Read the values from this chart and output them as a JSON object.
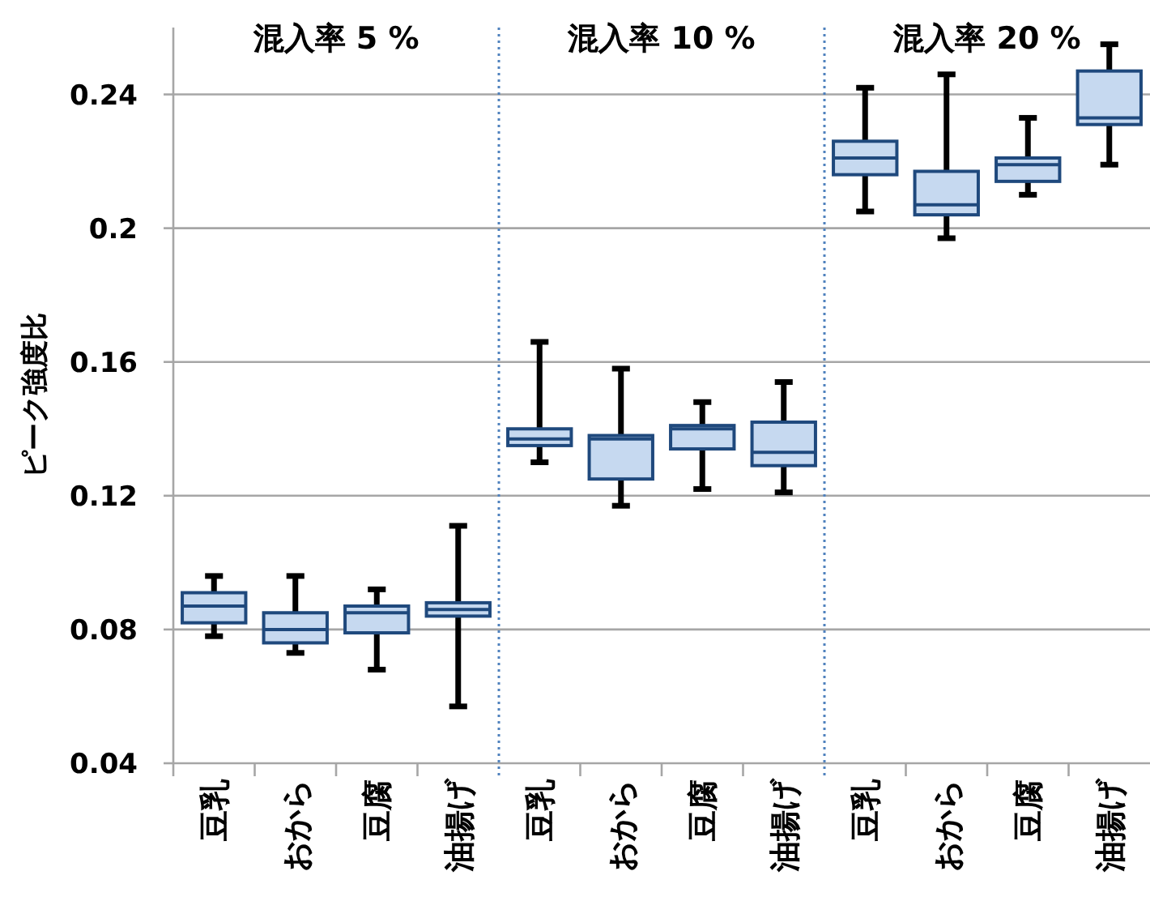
{
  "chart_data": [
    {
      "type": "box",
      "title": "混入率 5 %",
      "ylabel": "ピーク強度比",
      "categories": [
        "豆乳",
        "おから",
        "豆腐",
        "油揚げ"
      ],
      "ylim": [
        0.04,
        0.26
      ],
      "yticks": [
        0.04,
        0.08,
        0.12,
        0.16,
        0.2,
        0.24
      ],
      "grid": "y",
      "series": [
        {
          "color": "#c6d9f0",
          "boxes": [
            {
              "low": 0.078,
              "q1": 0.082,
              "median": 0.087,
              "q3": 0.091,
              "high": 0.096
            },
            {
              "low": 0.073,
              "q1": 0.076,
              "median": 0.08,
              "q3": 0.085,
              "high": 0.096
            },
            {
              "low": 0.068,
              "q1": 0.079,
              "median": 0.085,
              "q3": 0.087,
              "high": 0.092
            },
            {
              "low": 0.057,
              "q1": 0.084,
              "median": 0.086,
              "q3": 0.088,
              "high": 0.111
            }
          ]
        }
      ]
    },
    {
      "type": "box",
      "title": "混入率 10 %",
      "categories": [
        "豆乳",
        "おから",
        "豆腐",
        "油揚げ"
      ],
      "ylim": [
        0.04,
        0.26
      ],
      "yticks": [
        0.04,
        0.08,
        0.12,
        0.16,
        0.2,
        0.24
      ],
      "grid": "y",
      "tick_labels": "x",
      "series": [
        {
          "color": "#c6d9f0",
          "boxes": [
            {
              "low": 0.13,
              "q1": 0.135,
              "median": 0.137,
              "q3": 0.14,
              "high": 0.166
            },
            {
              "low": 0.117,
              "q1": 0.125,
              "median": 0.137,
              "q3": 0.138,
              "high": 0.158
            },
            {
              "low": 0.122,
              "q1": 0.134,
              "median": 0.14,
              "q3": 0.141,
              "high": 0.148
            },
            {
              "low": 0.121,
              "q1": 0.129,
              "median": 0.133,
              "q3": 0.142,
              "high": 0.154
            }
          ]
        }
      ]
    },
    {
      "type": "box",
      "title": "混入率 20 %",
      "categories": [
        "豆乳",
        "おから",
        "豆腐",
        "油揚げ"
      ],
      "ylim": [
        0.04,
        0.26
      ],
      "yticks": [
        0.04,
        0.08,
        0.12,
        0.16,
        0.2,
        0.24
      ],
      "grid": "y",
      "tick_labels": "x",
      "series": [
        {
          "color": "#c6d9f0",
          "boxes": [
            {
              "low": 0.205,
              "q1": 0.216,
              "median": 0.221,
              "q3": 0.226,
              "high": 0.242
            },
            {
              "low": 0.197,
              "q1": 0.204,
              "median": 0.207,
              "q3": 0.217,
              "high": 0.246
            },
            {
              "low": 0.21,
              "q1": 0.214,
              "median": 0.219,
              "q3": 0.221,
              "high": 0.233
            },
            {
              "low": 0.219,
              "q1": 0.231,
              "median": 0.233,
              "q3": 0.247,
              "high": 0.255
            }
          ]
        }
      ]
    }
  ]
}
